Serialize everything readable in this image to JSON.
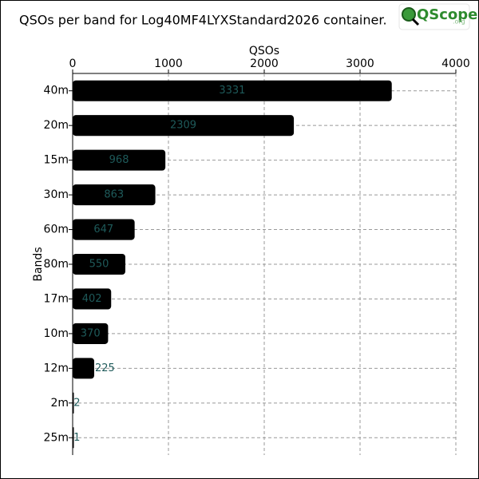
{
  "chart_data": {
    "type": "bar",
    "orientation": "horizontal",
    "title": "QSOs per band for Log40MF4LYXStandard2026 container.",
    "logo": {
      "name": "QScope",
      "suffix": ".org"
    },
    "x_label": "QSOs",
    "y_label": "Bands",
    "categories": [
      "40m",
      "20m",
      "15m",
      "30m",
      "60m",
      "80m",
      "17m",
      "10m",
      "12m",
      "2m",
      "25m"
    ],
    "values": [
      3331,
      2309,
      968,
      863,
      647,
      550,
      402,
      370,
      225,
      2,
      1
    ],
    "color": "#000000",
    "label_color": "#1e5a5a",
    "xlim": [
      0,
      4000
    ],
    "xticks": [
      0,
      1000,
      2000,
      3000,
      4000
    ],
    "grid": true
  }
}
